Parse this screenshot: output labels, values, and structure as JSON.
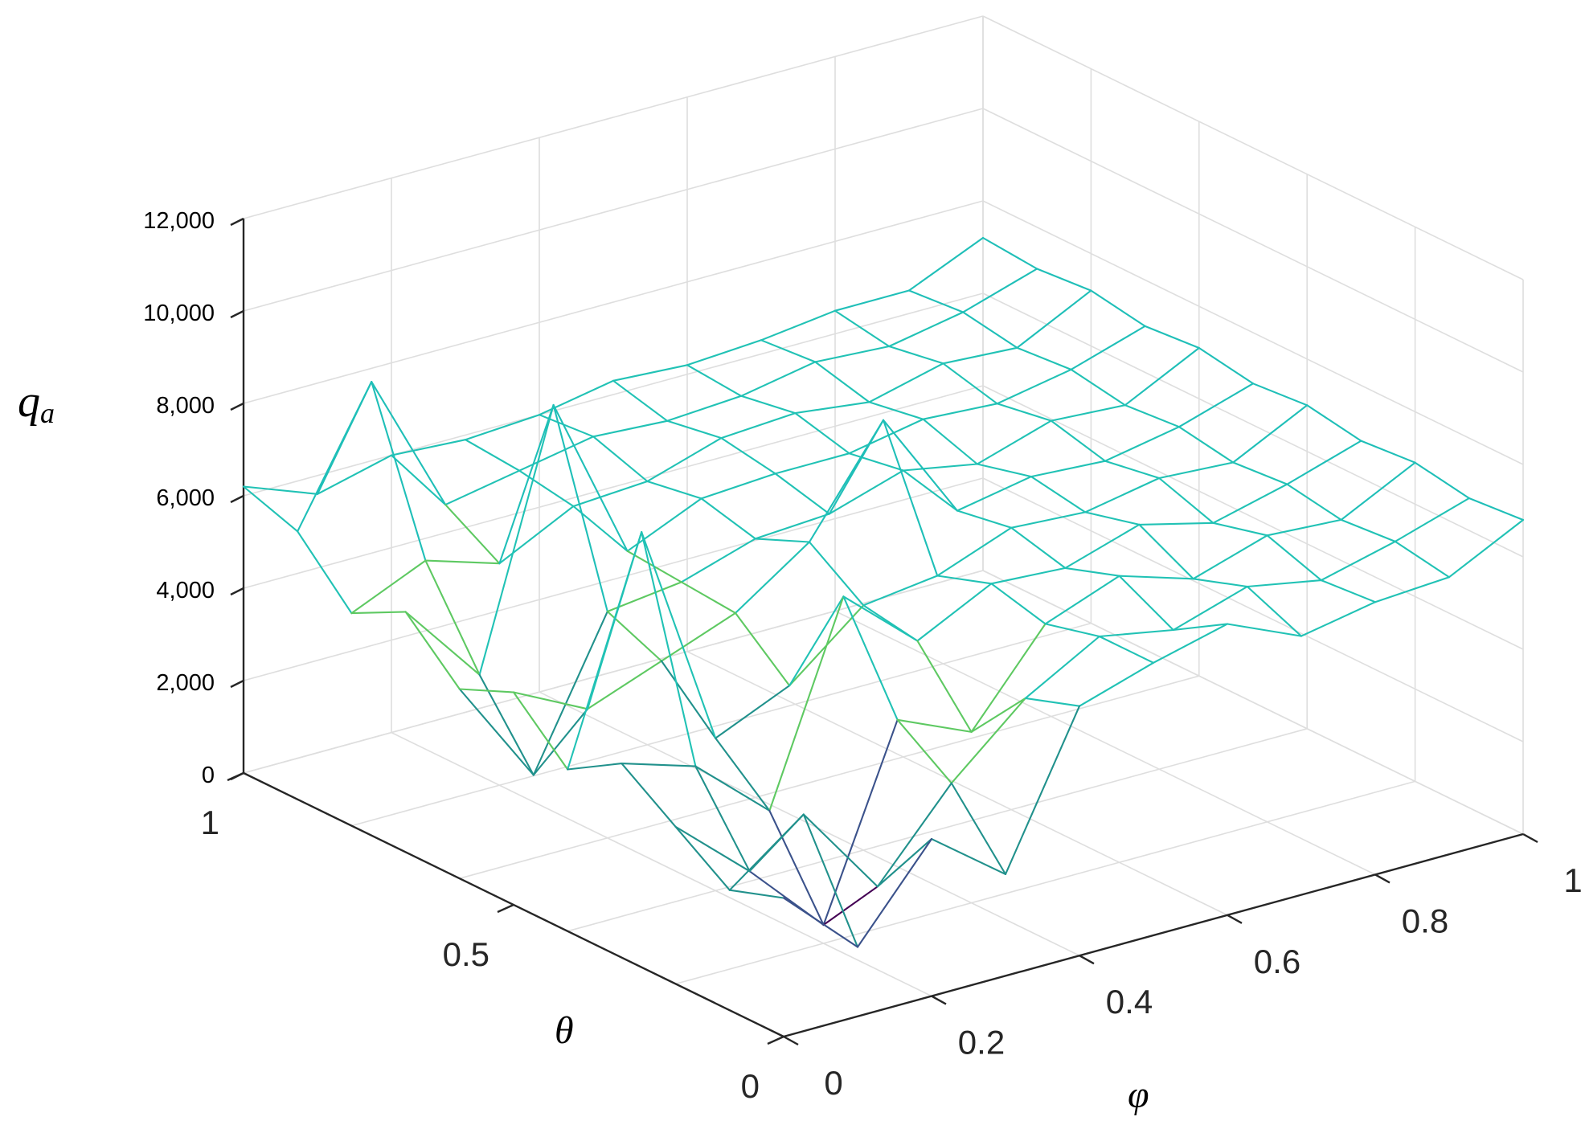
{
  "chart_data": {
    "type": "surface",
    "xlabel": "φ",
    "ylabel": "θ",
    "zlabel": "q",
    "zlabel_subscript": "a",
    "xlim": [
      0,
      1
    ],
    "ylim": [
      0,
      1
    ],
    "zlim": [
      0,
      12000
    ],
    "x_ticks": [
      "0",
      "0.2",
      "0.4",
      "0.6",
      "0.8",
      "1"
    ],
    "x_tick_values": [
      0,
      0.2,
      0.4,
      0.6,
      0.8,
      1
    ],
    "y_ticks": [
      "0",
      "0.5",
      "1"
    ],
    "y_tick_values": [
      0,
      0.5,
      1
    ],
    "z_ticks": [
      "0",
      "2,000",
      "4,000",
      "6,000",
      "8,000",
      "10,000",
      "12,000"
    ],
    "z_tick_values": [
      0,
      2000,
      4000,
      6000,
      8000,
      10000,
      12000
    ],
    "grid": true,
    "colormap": [
      "#440154",
      "#3b528b",
      "#21918c",
      "#21c2b5",
      "#5ec962",
      "#fde725"
    ],
    "mesh_color": "#1fbfb8",
    "surface": {
      "phi": [
        0,
        0.1,
        0.2,
        0.3,
        0.4,
        0.5,
        0.6,
        0.7,
        0.8,
        0.9,
        1
      ],
      "theta": [
        0,
        0.1,
        0.2,
        0.3,
        0.4,
        0.5,
        0.6,
        0.7,
        0.8,
        0.9,
        1
      ],
      "z_rows_by_theta": [
        [
          3000,
          1500,
          3400,
          2200,
          5400,
          5900,
          6300,
          5600,
          5900,
          6000,
          6800
        ],
        [
          2600,
          3800,
          1800,
          3600,
          5000,
          5900,
          5600,
          6100,
          5800,
          6200,
          6700
        ],
        [
          3400,
          2000,
          400,
          4400,
          3700,
          5600,
          6200,
          5700,
          6200,
          6100,
          6900
        ],
        [
          4200,
          3700,
          2300,
          6500,
          5100,
          5900,
          5800,
          6300,
          5900,
          6300,
          6800
        ],
        [
          3500,
          8200,
          3300,
          4000,
          5300,
          5500,
          6100,
          6000,
          6300,
          6200,
          7000
        ],
        [
          4600,
          3800,
          4400,
          5000,
          6100,
          8300,
          5900,
          6200,
          6100,
          6400,
          6900
        ],
        [
          4100,
          1800,
          4900,
          5100,
          5600,
          5700,
          6200,
          5900,
          6400,
          6300,
          7100
        ],
        [
          5200,
          3400,
          8800,
          5200,
          5900,
          6000,
          6000,
          6300,
          6200,
          6500,
          7000
        ],
        [
          4600,
          5300,
          4800,
          5600,
          5700,
          6200,
          6300,
          6100,
          6500,
          6400,
          7200
        ],
        [
          5800,
          8600,
          5500,
          5800,
          6100,
          6000,
          6100,
          6400,
          6300,
          6600,
          7100
        ],
        [
          6200,
          5600,
          6000,
          5900,
          6000,
          6300,
          6200,
          6300,
          6500,
          6500,
          7200
        ]
      ]
    }
  }
}
